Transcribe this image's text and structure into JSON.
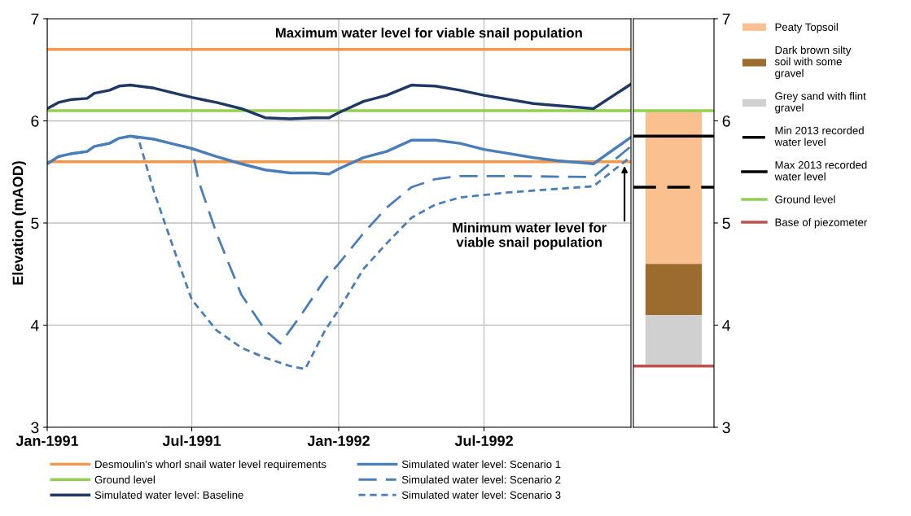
{
  "chart_data": [
    {
      "type": "line",
      "ylabel": "Elevation (mAOD)",
      "xlim": [
        "1991-01-01",
        "1993-01-01"
      ],
      "xticks": [
        {
          "value": "1991-01-01",
          "label": "Jan-1991"
        },
        {
          "value": "1991-07-01",
          "label": "Jul-1991"
        },
        {
          "value": "1992-01-01",
          "label": "Jan-1992"
        },
        {
          "value": "1992-07-01",
          "label": "Jul-1992"
        }
      ],
      "ylim": [
        3,
        7
      ],
      "yticks": [
        3,
        4,
        5,
        6,
        7
      ],
      "grid": true,
      "legend": "bottom",
      "annotations": [
        {
          "text": "Maximum water level for viable snail population",
          "x": "1992-04-23",
          "y": 6.7
        },
        "Minimum water level for\nviable snail population"
      ],
      "series": [
        {
          "name": "Desmoulin's whorl snail water level requirements",
          "color": "#f79646",
          "line_style": "solid",
          "x": [
            "1991-01-01",
            "1993-01-01"
          ],
          "values": [
            6.7,
            6.7
          ]
        },
        {
          "color": "#f79646",
          "line_style": "solid",
          "x": [
            "1991-01-01",
            "1993-01-01"
          ],
          "values": [
            5.6,
            5.6
          ]
        },
        {
          "name": "Ground level",
          "color": "#92d050",
          "line_style": "solid",
          "x": [
            "1991-01-01",
            "1993-01-01"
          ],
          "values": [
            6.1,
            6.1
          ]
        },
        {
          "name": "Simulated water level: Baseline",
          "color": "#1f3864",
          "line_style": "solid",
          "x": [
            "1991-01-01",
            "1991-01-15",
            "1991-02-01",
            "1991-02-20",
            "1991-03-01",
            "1991-03-20",
            "1991-04-01",
            "1991-04-15",
            "1991-05-15",
            "1991-06-15",
            "1991-07-01",
            "1991-08-01",
            "1991-09-01",
            "1991-10-01",
            "1991-11-01",
            "1991-12-01",
            "1991-12-20",
            "1992-01-01",
            "1992-02-01",
            "1992-03-01",
            "1992-04-01",
            "1992-05-01",
            "1992-06-01",
            "1992-07-01",
            "1992-08-01",
            "1992-09-01",
            "1992-10-01",
            "1992-11-01",
            "1992-11-15",
            "1993-01-01"
          ],
          "values": [
            6.12,
            6.18,
            6.21,
            6.22,
            6.27,
            6.3,
            6.34,
            6.35,
            6.32,
            6.26,
            6.23,
            6.18,
            6.12,
            6.03,
            6.02,
            6.03,
            6.03,
            6.08,
            6.19,
            6.25,
            6.35,
            6.34,
            6.3,
            6.25,
            6.21,
            6.17,
            6.15,
            6.13,
            6.12,
            6.36
          ]
        },
        {
          "name": "Simulated water level: Scenario 1",
          "color": "#4a7ebb",
          "line_style": "solid",
          "x": [
            "1991-01-01",
            "1991-01-15",
            "1991-02-01",
            "1991-02-20",
            "1991-03-01",
            "1991-03-20",
            "1991-04-01",
            "1991-04-15",
            "1991-05-15",
            "1991-06-15",
            "1991-07-01",
            "1991-08-01",
            "1991-09-01",
            "1991-10-01",
            "1991-11-01",
            "1991-12-01",
            "1991-12-20",
            "1992-01-01",
            "1992-02-01",
            "1992-03-01",
            "1992-04-01",
            "1992-05-01",
            "1992-06-01",
            "1992-07-01",
            "1992-08-01",
            "1992-09-01",
            "1992-10-01",
            "1992-11-01",
            "1992-11-15",
            "1993-01-01"
          ],
          "values": [
            5.58,
            5.65,
            5.68,
            5.7,
            5.75,
            5.78,
            5.83,
            5.85,
            5.82,
            5.76,
            5.73,
            5.65,
            5.58,
            5.52,
            5.49,
            5.49,
            5.48,
            5.53,
            5.64,
            5.7,
            5.81,
            5.81,
            5.78,
            5.72,
            5.68,
            5.64,
            5.61,
            5.59,
            5.58,
            5.84
          ]
        },
        {
          "name": "Simulated water level: Scenario 2",
          "color": "#4a7ebb",
          "line_style": "dashed",
          "x": [
            "1991-01-01",
            "1991-01-15",
            "1991-02-01",
            "1991-02-20",
            "1991-03-01",
            "1991-03-20",
            "1991-04-01",
            "1991-04-15",
            "1991-05-15",
            "1991-06-15",
            "1991-07-01",
            "1991-07-10",
            "1991-08-01",
            "1991-09-01",
            "1991-10-01",
            "1991-10-20",
            "1991-11-15",
            "1991-12-15",
            "1992-01-01",
            "1992-02-01",
            "1992-03-01",
            "1992-04-01",
            "1992-05-01",
            "1992-06-01",
            "1992-08-01",
            "1992-11-15",
            "1993-01-01"
          ],
          "values": [
            5.58,
            5.65,
            5.68,
            5.7,
            5.75,
            5.78,
            5.83,
            5.85,
            5.82,
            5.76,
            5.73,
            5.4,
            4.9,
            4.3,
            3.95,
            3.82,
            4.1,
            4.45,
            4.6,
            4.9,
            5.15,
            5.35,
            5.43,
            5.46,
            5.46,
            5.45,
            5.75
          ]
        },
        {
          "name": "Simulated water level: Scenario 3",
          "color": "#4a7ebb",
          "line_style": "dotted",
          "x": [
            "1991-01-01",
            "1991-01-15",
            "1991-02-01",
            "1991-02-20",
            "1991-03-01",
            "1991-03-20",
            "1991-04-01",
            "1991-04-15",
            "1991-04-25",
            "1991-05-15",
            "1991-06-15",
            "1991-07-01",
            "1991-08-01",
            "1991-09-01",
            "1991-10-01",
            "1991-11-01",
            "1991-11-20",
            "1991-12-15",
            "1992-01-01",
            "1992-02-01",
            "1992-03-01",
            "1992-04-01",
            "1992-05-01",
            "1992-06-01",
            "1992-08-01",
            "1992-11-15",
            "1993-01-01"
          ],
          "values": [
            5.58,
            5.65,
            5.68,
            5.7,
            5.75,
            5.78,
            5.83,
            5.85,
            5.83,
            5.3,
            4.6,
            4.25,
            3.95,
            3.78,
            3.68,
            3.6,
            3.57,
            3.95,
            4.15,
            4.55,
            4.8,
            5.05,
            5.18,
            5.25,
            5.3,
            5.36,
            5.65
          ]
        }
      ]
    },
    {
      "type": "bar",
      "categories": [
        null
      ],
      "ylim": [
        3,
        7
      ],
      "yticks": [
        3,
        4,
        5,
        6,
        7
      ],
      "tick_labels": "y",
      "legend": "right",
      "series": [
        {
          "name": "Peaty Topsoil",
          "color": "#fac090",
          "base": [
            4.6
          ],
          "values": [
            1.5
          ]
        },
        {
          "name": "Dark brown silty\nsoil with some\ngravel",
          "color": "#9c6b2e",
          "base": [
            4.1
          ],
          "values": [
            0.5
          ]
        },
        {
          "name": "Grey sand with flint\ngravel",
          "color": "#d0d0d0",
          "base": [
            3.6
          ],
          "values": [
            0.5
          ]
        }
      ],
      "ref_lines": [
        {
          "axis": "y",
          "value": 5.35,
          "label": "Min 2013 recorded\nwater level",
          "color": "#000000",
          "line_style": "dashed"
        },
        {
          "axis": "y",
          "value": 5.85,
          "label": "Max 2013 recorded\nwater level",
          "color": "#000000",
          "line_style": "solid"
        },
        {
          "axis": "y",
          "value": 6.1,
          "label": "Ground level",
          "color": "#92d050",
          "line_style": "solid"
        },
        {
          "axis": "y",
          "value": 3.6,
          "label": "Base of piezometer",
          "color": "#c0504d",
          "line_style": "solid"
        }
      ]
    }
  ]
}
